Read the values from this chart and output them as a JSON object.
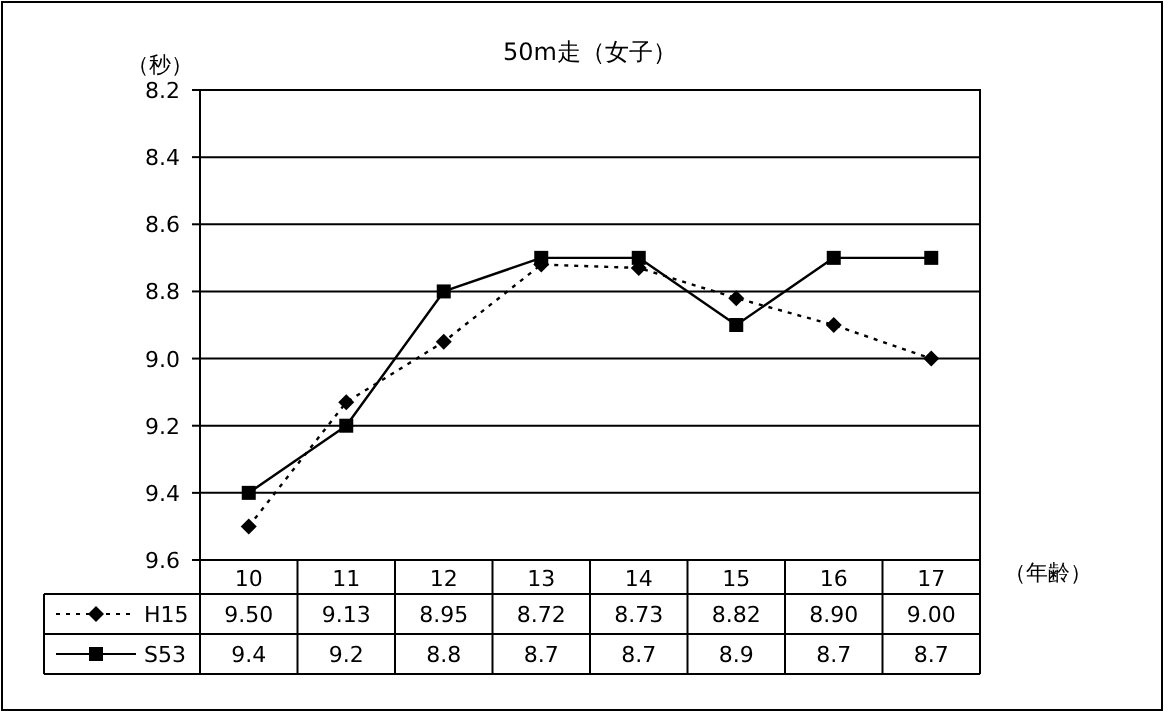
{
  "chart_data": {
    "type": "line",
    "title": "50m走（女子）",
    "ylabel": "（秒）",
    "xlabel": "（年齢）",
    "categories": [
      "10",
      "11",
      "12",
      "13",
      "14",
      "15",
      "16",
      "17"
    ],
    "ylim": [
      9.6,
      8.2
    ],
    "yticks": [
      {
        "value": 8.2,
        "label": "8.2"
      },
      {
        "value": 8.4,
        "label": "8.4"
      },
      {
        "value": 8.6,
        "label": "8.6"
      },
      {
        "value": 8.8,
        "label": "8.8"
      },
      {
        "value": 9,
        "label": "9.0"
      },
      {
        "value": 9.2,
        "label": "9.2"
      },
      {
        "value": 9.4,
        "label": "9.4"
      },
      {
        "value": 9.6,
        "label": "9.6"
      }
    ],
    "grid": "y",
    "legend": "bottom",
    "series": [
      {
        "name": "H15",
        "color": "#000000",
        "marker": "diamond",
        "line_style": "dotted",
        "values": [
          9.5,
          9.13,
          8.95,
          8.72,
          8.73,
          8.82,
          8.9,
          9.0
        ],
        "value_labels": [
          "9.50",
          "9.13",
          "8.95",
          "8.72",
          "8.73",
          "8.82",
          "8.90",
          "9.00"
        ]
      },
      {
        "name": "S53",
        "color": "#000000",
        "marker": "square",
        "line_style": "solid",
        "values": [
          9.4,
          9.2,
          8.8,
          8.7,
          8.7,
          8.9,
          8.7,
          8.7
        ],
        "value_labels": [
          "9.4",
          "9.2",
          "8.8",
          "8.7",
          "8.7",
          "8.9",
          "8.7",
          "8.7"
        ]
      }
    ]
  }
}
